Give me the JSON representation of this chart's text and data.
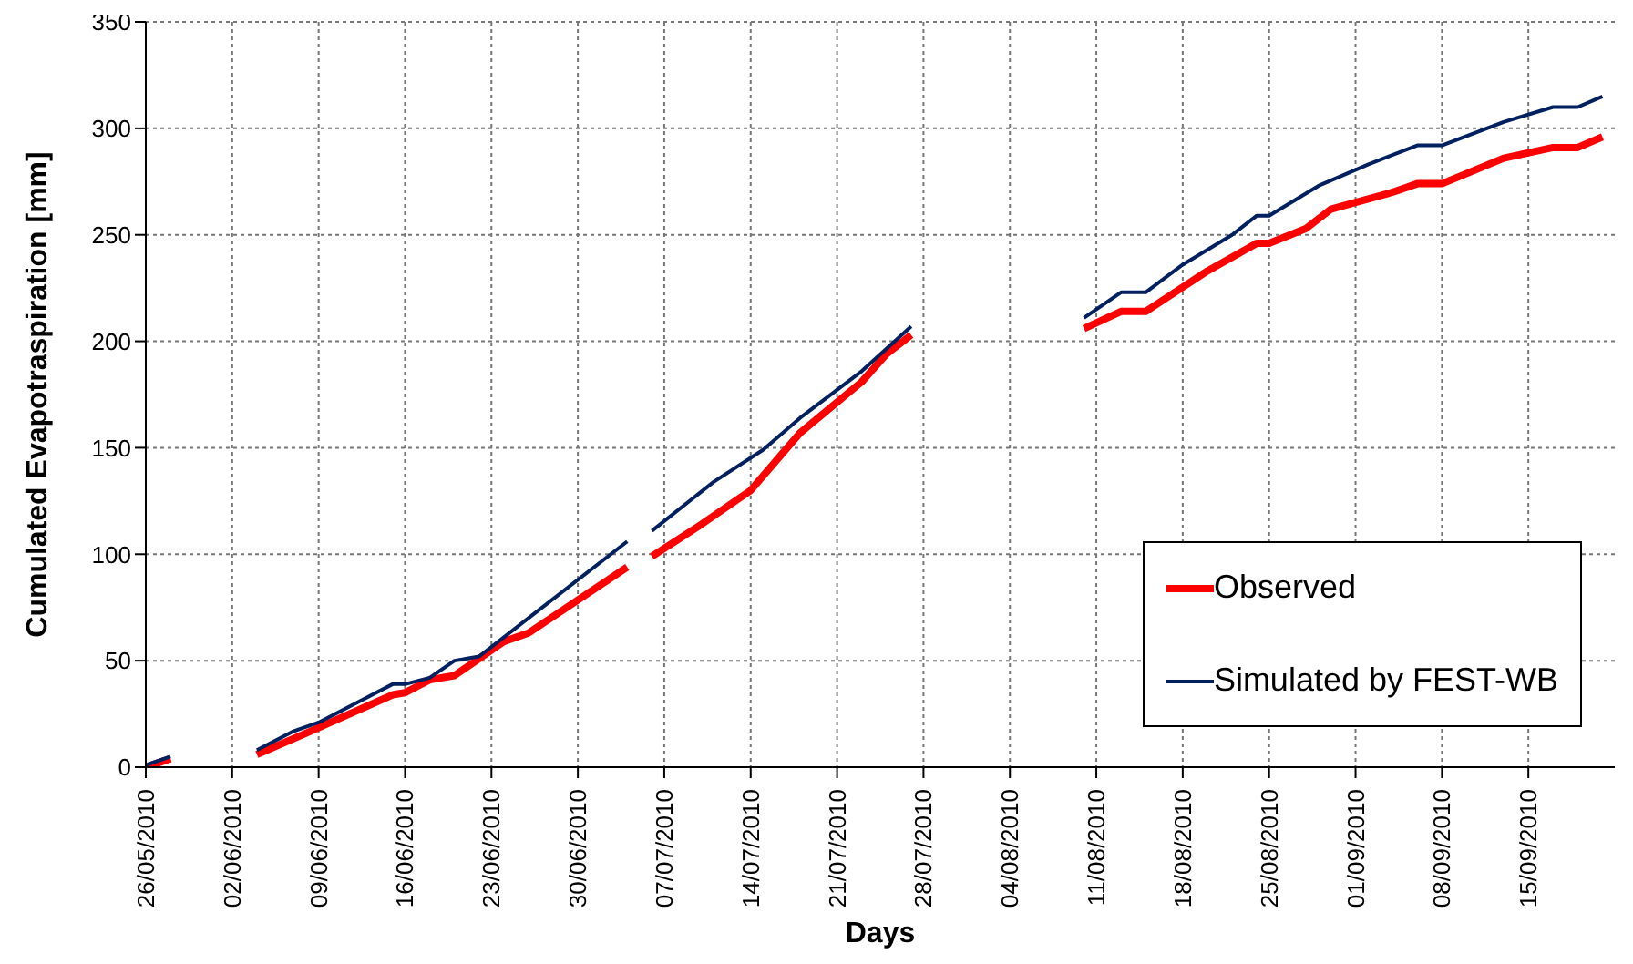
{
  "chart_data": {
    "type": "line",
    "xlabel": "Days",
    "ylabel": "Cumulated Evapotraspiration [mm]",
    "xlim": [
      "2010-05-26",
      "2010-09-22"
    ],
    "xticks": [
      {
        "value": "2010-05-26",
        "label": "26/05/2010"
      },
      {
        "value": "2010-06-02",
        "label": "02/06/2010"
      },
      {
        "value": "2010-06-09",
        "label": "09/06/2010"
      },
      {
        "value": "2010-06-16",
        "label": "16/06/2010"
      },
      {
        "value": "2010-06-23",
        "label": "23/06/2010"
      },
      {
        "value": "2010-06-30",
        "label": "30/06/2010"
      },
      {
        "value": "2010-07-07",
        "label": "07/07/2010"
      },
      {
        "value": "2010-07-14",
        "label": "14/07/2010"
      },
      {
        "value": "2010-07-21",
        "label": "21/07/2010"
      },
      {
        "value": "2010-07-28",
        "label": "28/07/2010"
      },
      {
        "value": "2010-08-04",
        "label": "04/08/2010"
      },
      {
        "value": "2010-08-11",
        "label": "11/08/2010"
      },
      {
        "value": "2010-08-18",
        "label": "18/08/2010"
      },
      {
        "value": "2010-08-25",
        "label": "25/08/2010"
      },
      {
        "value": "2010-09-01",
        "label": "01/09/2010"
      },
      {
        "value": "2010-09-08",
        "label": "08/09/2010"
      },
      {
        "value": "2010-09-15",
        "label": "15/09/2010"
      }
    ],
    "ylim": [
      0,
      350
    ],
    "yticks": [
      0,
      50,
      100,
      150,
      200,
      250,
      300,
      350
    ],
    "grid": true,
    "legend": "bottom right",
    "marker": "none",
    "line_style": "solid",
    "series": [
      {
        "name": "Observed",
        "color": "#ff0000",
        "x": [
          "2010-05-26",
          "2010-05-28",
          "2010-05-30",
          "2010-06-04",
          "2010-06-08",
          "2010-06-15",
          "2010-06-16",
          "2010-06-18",
          "2010-06-20",
          "2010-06-24",
          "2010-06-26",
          "2010-07-04",
          "2010-07-05",
          "2010-07-06",
          "2010-07-10",
          "2010-07-14",
          "2010-07-18",
          "2010-07-23",
          "2010-07-25",
          "2010-07-27",
          "2010-08-05",
          "2010-08-10",
          "2010-08-13",
          "2010-08-15",
          "2010-08-20",
          "2010-08-24",
          "2010-08-25",
          "2010-08-28",
          "2010-08-30",
          "2010-09-04",
          "2010-09-06",
          "2010-09-08",
          "2010-09-13",
          "2010-09-17",
          "2010-09-19",
          "2010-09-21"
        ],
        "values": [
          0,
          4,
          null,
          6,
          16,
          34,
          35,
          41,
          43,
          59,
          63,
          94,
          null,
          99,
          114,
          130,
          157,
          181,
          194,
          203,
          null,
          206,
          214,
          214,
          233,
          246,
          246,
          253,
          262,
          270,
          274,
          274,
          286,
          291,
          291,
          296
        ]
      },
      {
        "name": "Simulated by FEST-WB",
        "color": "#002060",
        "x": [
          "2010-05-26",
          "2010-05-28",
          "2010-05-30",
          "2010-06-04",
          "2010-06-07",
          "2010-06-09",
          "2010-06-15",
          "2010-06-16",
          "2010-06-18",
          "2010-06-20",
          "2010-06-22",
          "2010-06-26",
          "2010-07-04",
          "2010-07-05",
          "2010-07-06",
          "2010-07-11",
          "2010-07-15",
          "2010-07-18",
          "2010-07-23",
          "2010-07-27",
          "2010-08-05",
          "2010-08-10",
          "2010-08-13",
          "2010-08-15",
          "2010-08-18",
          "2010-08-22",
          "2010-08-24",
          "2010-08-25",
          "2010-08-29",
          "2010-09-02",
          "2010-09-06",
          "2010-09-08",
          "2010-09-13",
          "2010-09-17",
          "2010-09-19",
          "2010-09-21"
        ],
        "values": [
          1,
          5,
          null,
          8,
          17,
          21,
          39,
          39,
          42,
          50,
          52,
          70,
          106,
          null,
          111,
          134,
          149,
          164,
          186,
          207,
          null,
          211,
          223,
          223,
          236,
          250,
          259,
          259,
          273,
          283,
          292,
          292,
          303,
          310,
          310,
          315
        ]
      }
    ]
  }
}
